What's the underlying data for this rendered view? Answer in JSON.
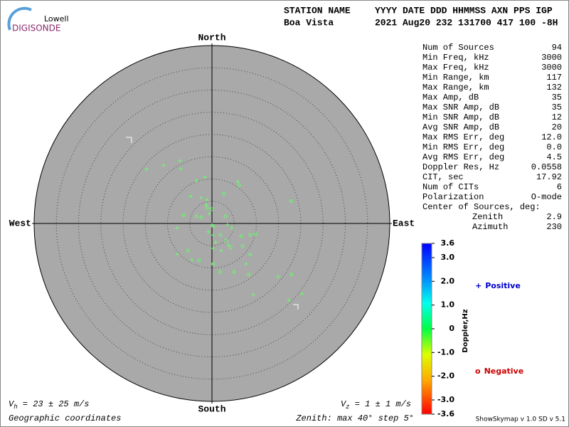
{
  "logo": {
    "top": "Lowell",
    "bottom": "DIGISONDE"
  },
  "header": {
    "station_label": "STATION NAME",
    "station": "Boa Vista",
    "columns": "YYYY DATE  DDD HHMMSS AXN PPS IGP",
    "values": "2021 Aug20 232 131700 417 100 -8H"
  },
  "stats": [
    [
      "Num of Sources",
      "94"
    ],
    [
      "Min Freq, kHz",
      "3000"
    ],
    [
      "Max Freq, kHz",
      "3000"
    ],
    [
      "Min Range, km",
      "117"
    ],
    [
      "Max Range, km",
      "132"
    ],
    [
      "Max Amp, dB",
      "35"
    ],
    [
      "Max SNR Amp, dB",
      "35"
    ],
    [
      "Min SNR Amp, dB",
      "12"
    ],
    [
      "Avg SNR Amp, dB",
      "20"
    ],
    [
      "Max RMS Err, deg",
      "12.0"
    ],
    [
      "Min RMS Err, deg",
      "0.0"
    ],
    [
      "Avg RMS Err, deg",
      "4.5"
    ],
    [
      "Doppler Res, Hz",
      "0.0558"
    ],
    [
      "CIT, sec",
      "17.92"
    ],
    [
      "Num of CITs",
      "6"
    ],
    [
      "Polarization",
      "O-mode"
    ]
  ],
  "center_of_sources": {
    "label": "Center of Sources, deg:",
    "rows": [
      [
        "Zenith",
        "2.9"
      ],
      [
        "Azimuth",
        "230"
      ]
    ]
  },
  "chart_data": {
    "type": "skymap",
    "directions": {
      "north": "North",
      "south": "South",
      "east": "East",
      "west": "West"
    },
    "rlim": [
      0,
      40
    ],
    "rticks": [
      5,
      10,
      15,
      20,
      25,
      30,
      35,
      40
    ],
    "background": "#a9a9a9",
    "series": [
      {
        "name": "Positive",
        "marker": "+",
        "color": "#66ff66",
        "legend_color": "#0000cc",
        "x": [
          -14.7,
          -10.9,
          -7.2,
          -7.0,
          -3.5,
          -1.6,
          -4.8,
          -2.4,
          -1.1,
          -0.6,
          0,
          -0.8,
          0.2,
          3.5,
          0.8,
          3.7,
          2.1,
          0.2,
          -7.8,
          -7.8,
          -4.5,
          7.7,
          9.3,
          14.9,
          20.3,
          17.3,
          5.8,
          -1.3
        ],
        "y": [
          12.2,
          13.1,
          14.1,
          12.3,
          9.6,
          10.4,
          6.1,
          5.8,
          5.3,
          2.2,
          -0.3,
          -1.9,
          -2.6,
          -0.3,
          -4.2,
          -4.8,
          -6.1,
          -5.6,
          -1.0,
          -6.9,
          -8.2,
          -9.1,
          -16.0,
          -12.0,
          -15.8,
          -17.3,
          9.4,
          4.2
        ]
      },
      {
        "name": "Negative",
        "marker": "o",
        "color": "#66ff66",
        "legend_color": "#cc0000",
        "x": [
          2.7,
          6.1,
          17.8,
          -6.4,
          -3.5,
          3.0,
          -2.4,
          0.3,
          1.9,
          6.6,
          8.6,
          9.8,
          4.2,
          6.9,
          8.6,
          -5.4,
          -2.9,
          0.3,
          1.8,
          5.0,
          8.3,
          17.9,
          0,
          -1.1,
          4.6,
          3.2
        ],
        "y": [
          6.7,
          8.6,
          5.0,
          1.9,
          1.6,
          1.6,
          1.4,
          -0.6,
          -2.6,
          -2.9,
          -2.6,
          -2.4,
          -5.4,
          -5.1,
          -7.0,
          -6.1,
          -8.3,
          -9.1,
          -10.9,
          -10.9,
          -11.5,
          -11.5,
          3.2,
          3.5,
          -1.0,
          -3.8
        ]
      }
    ],
    "colorbar": {
      "title": "Doppler,Hz",
      "lim": [
        -3.6,
        3.6
      ],
      "ticks": [
        3.6,
        {
          "value": 3.0,
          "label": "3.0"
        },
        {
          "value": 2.0,
          "label": "2.0"
        },
        {
          "value": 1.0,
          "label": "1.0"
        },
        0,
        {
          "value": -1.0,
          "label": "-1.0"
        },
        {
          "value": -2.0,
          "label": "-2.0"
        },
        {
          "value": -3.0,
          "label": "-3.0"
        },
        -3.6
      ]
    },
    "vh": {
      "symbol": "V",
      "sub": "h",
      "text": " = 23 ± 25 m/s"
    },
    "vz": {
      "symbol": "V",
      "sub": "z",
      "text": " = 1 ± 1 m/s"
    },
    "coordinates": "Geographic coordinates",
    "zenith_label": "Zenith: max 40°  step 5°",
    "version": "ShowSkymap v 1.0   SD v 5.1"
  }
}
